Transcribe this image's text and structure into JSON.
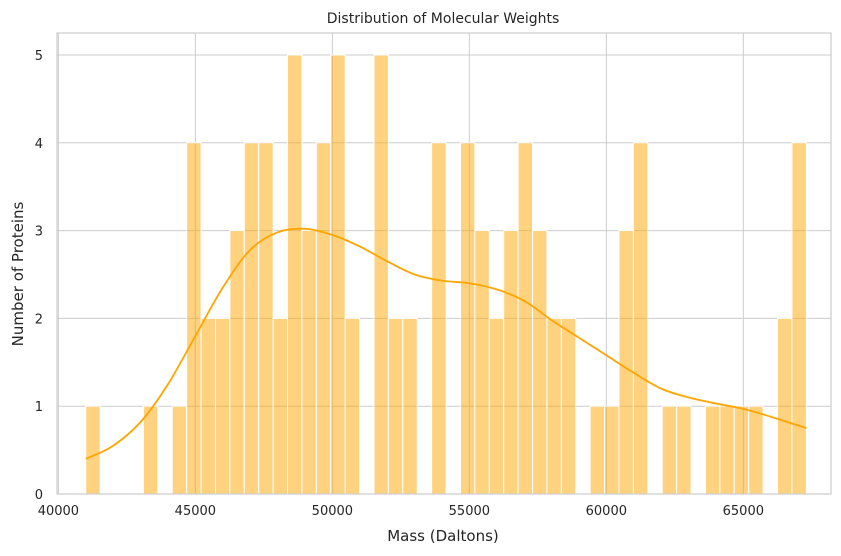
{
  "chart_data": {
    "type": "bar",
    "title": "Distribution of Molecular Weights",
    "xlabel": "Mass (Daltons)",
    "ylabel": "Number of Proteins",
    "xlim": [
      39950,
      68200
    ],
    "ylim": [
      0,
      5.25
    ],
    "x_ticks": [
      40000,
      45000,
      50000,
      55000,
      60000,
      65000
    ],
    "x_tick_labels": [
      "40000",
      "45000",
      "50000",
      "55000",
      "60000",
      "65000"
    ],
    "y_ticks": [
      0,
      1,
      2,
      3,
      4,
      5
    ],
    "y_tick_labels": [
      "0",
      "1",
      "2",
      "3",
      "4",
      "5"
    ],
    "grid": true,
    "bin_start": 41000,
    "bin_width": 526,
    "series": [
      {
        "type": "histogram",
        "color": "#ffa500",
        "counts": [
          1,
          0,
          0,
          0,
          1,
          0,
          1,
          4,
          2,
          2,
          3,
          4,
          4,
          2,
          5,
          3,
          4,
          5,
          2,
          0,
          5,
          2,
          2,
          0,
          4,
          0,
          4,
          3,
          2,
          3,
          4,
          3,
          2,
          2,
          0,
          1,
          1,
          3,
          4,
          0,
          1,
          1,
          0,
          1,
          1,
          1,
          1,
          0,
          2,
          4
        ]
      },
      {
        "type": "kde",
        "color": "#ffa500",
        "x": [
          41000,
          42000,
          43000,
          44000,
          45000,
          46000,
          47000,
          48000,
          49000,
          50000,
          51000,
          52000,
          53000,
          54000,
          55000,
          56000,
          57000,
          58000,
          59000,
          60000,
          61000,
          62000,
          63000,
          64000,
          65000,
          66000,
          67300
        ],
        "y": [
          0.4,
          0.55,
          0.82,
          1.25,
          1.8,
          2.35,
          2.78,
          2.98,
          3.02,
          2.95,
          2.82,
          2.65,
          2.5,
          2.43,
          2.4,
          2.33,
          2.2,
          1.98,
          1.78,
          1.58,
          1.38,
          1.2,
          1.1,
          1.03,
          0.97,
          0.88,
          0.75
        ]
      }
    ]
  }
}
